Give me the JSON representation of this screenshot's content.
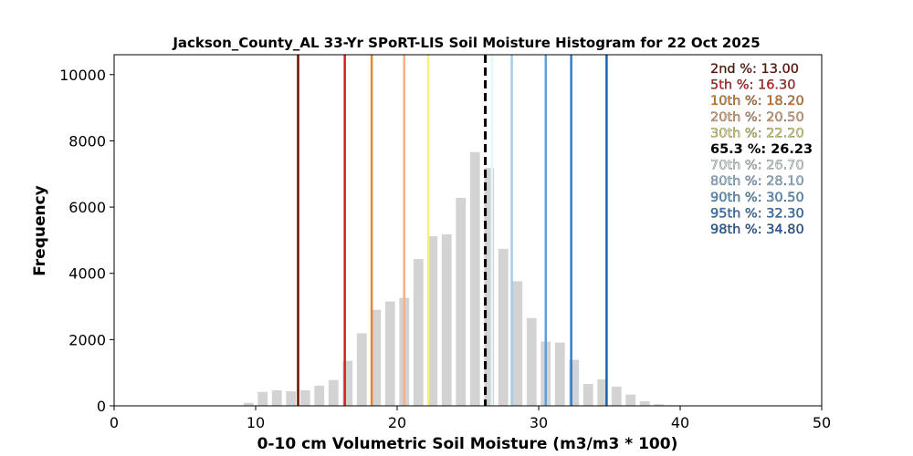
{
  "chart_data": {
    "type": "bar",
    "title": "Jackson_County_AL 33-Yr SPoRT-LIS Soil Moisture Histogram for 22 Oct 2025",
    "xlabel": "0-10 cm Volumetric Soil Moisture (m3/m3 * 100)",
    "ylabel": "Frequency",
    "xlim": [
      0,
      50
    ],
    "ylim": [
      0,
      10600
    ],
    "xticks": [
      "0",
      "10",
      "20",
      "30",
      "40",
      "50"
    ],
    "yticks": [
      "0",
      "2000",
      "4000",
      "6000",
      "8000",
      "10000"
    ],
    "bar_color": "#d3d3d3",
    "bins": [
      {
        "x": 8.0,
        "count": 10
      },
      {
        "x": 9.5,
        "count": 90
      },
      {
        "x": 10.5,
        "count": 420
      },
      {
        "x": 11.5,
        "count": 470
      },
      {
        "x": 12.5,
        "count": 440
      },
      {
        "x": 13.5,
        "count": 470
      },
      {
        "x": 14.5,
        "count": 610
      },
      {
        "x": 15.5,
        "count": 780
      },
      {
        "x": 16.5,
        "count": 1360
      },
      {
        "x": 17.5,
        "count": 2190
      },
      {
        "x": 18.5,
        "count": 2900
      },
      {
        "x": 19.5,
        "count": 3150
      },
      {
        "x": 20.5,
        "count": 3260
      },
      {
        "x": 21.5,
        "count": 4430
      },
      {
        "x": 22.5,
        "count": 5120
      },
      {
        "x": 23.5,
        "count": 5180
      },
      {
        "x": 24.5,
        "count": 6280
      },
      {
        "x": 25.5,
        "count": 7660
      },
      {
        "x": 26.5,
        "count": 7180
      },
      {
        "x": 27.5,
        "count": 4740
      },
      {
        "x": 28.5,
        "count": 3760
      },
      {
        "x": 29.5,
        "count": 2650
      },
      {
        "x": 30.5,
        "count": 1940
      },
      {
        "x": 31.5,
        "count": 1910
      },
      {
        "x": 32.5,
        "count": 1390
      },
      {
        "x": 33.5,
        "count": 660
      },
      {
        "x": 34.5,
        "count": 800
      },
      {
        "x": 35.5,
        "count": 580
      },
      {
        "x": 36.5,
        "count": 340
      },
      {
        "x": 37.5,
        "count": 140
      },
      {
        "x": 38.5,
        "count": 50
      },
      {
        "x": 39.5,
        "count": 20
      },
      {
        "x": 40.5,
        "count": 10
      }
    ],
    "percentile_lines": [
      {
        "label": "2nd %: 13.00",
        "value": 13.0,
        "color": "#6b0f00",
        "style": "solid"
      },
      {
        "label": "5th %: 16.30",
        "value": 16.3,
        "color": "#d42020",
        "style": "solid"
      },
      {
        "label": "10th %: 18.20",
        "value": 18.2,
        "color": "#e8862a",
        "style": "solid"
      },
      {
        "label": "20th %: 20.50",
        "value": 20.5,
        "color": "#f4b183",
        "style": "solid"
      },
      {
        "label": "30th %: 22.20",
        "value": 22.2,
        "color": "#f4f07a",
        "style": "solid"
      },
      {
        "label": "65.3 %: 26.23",
        "value": 26.23,
        "color": "#000000",
        "style": "dashed"
      },
      {
        "label": "70th %: 26.70",
        "value": 26.7,
        "color": "#e6f7fb",
        "style": "solid"
      },
      {
        "label": "80th %: 28.10",
        "value": 28.1,
        "color": "#9fcdf0",
        "style": "solid"
      },
      {
        "label": "90th %: 30.50",
        "value": 30.5,
        "color": "#5aa3e0",
        "style": "solid"
      },
      {
        "label": "95th %: 32.30",
        "value": 32.3,
        "color": "#2f7fd0",
        "style": "solid"
      },
      {
        "label": "98th %: 34.80",
        "value": 34.8,
        "color": "#1a5fb4",
        "style": "solid"
      }
    ],
    "legend_position": "top-right",
    "grid": false
  }
}
